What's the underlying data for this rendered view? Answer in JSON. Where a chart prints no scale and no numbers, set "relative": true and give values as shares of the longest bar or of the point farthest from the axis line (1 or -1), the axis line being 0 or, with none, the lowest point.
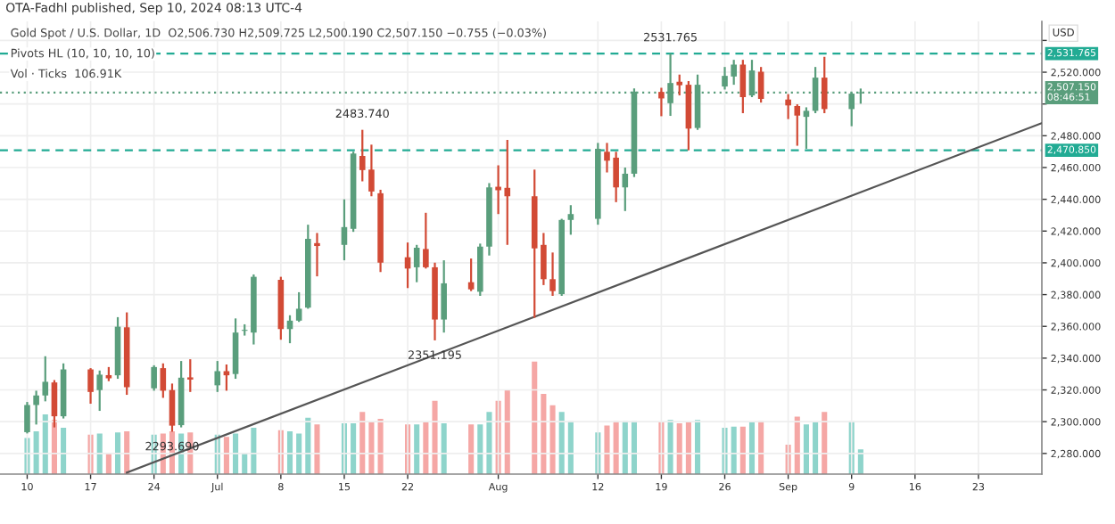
{
  "chart_data": [
    {
      "type": "candlestick",
      "title": "OTA-Fadhl published, Sep 10, 2024 08:13 UTC-4",
      "subtitle": "Gold Spot / U.S. Dollar, 1D  O2,506.730 H2,509.725 L2,500.190 C2,507.150 −0.755 (−0.03%)",
      "ylabel": "USD",
      "annotations": [
        "Pivots HL (10, 10, 10, 10)",
        "Vol · Ticks  106.91K",
        {
          "text": "2483.740",
          "x": "2024-07-17",
          "y": 2483.74
        },
        {
          "text": "2531.765",
          "x": "2024-08-20",
          "y": 2531.765
        },
        {
          "text": "2351.195",
          "x": "2024-07-25",
          "y": 2351.195
        },
        {
          "text": "2293.690",
          "x": "2024-06-26",
          "y": 2293.69
        }
      ],
      "x": [
        "2024-06-10",
        "2024-06-11",
        "2024-06-12",
        "2024-06-13",
        "2024-06-14",
        "2024-06-17",
        "2024-06-18",
        "2024-06-19",
        "2024-06-20",
        "2024-06-21",
        "2024-06-24",
        "2024-06-25",
        "2024-06-26",
        "2024-06-27",
        "2024-06-28",
        "2024-07-01",
        "2024-07-02",
        "2024-07-03",
        "2024-07-04",
        "2024-07-05",
        "2024-07-08",
        "2024-07-09",
        "2024-07-10",
        "2024-07-11",
        "2024-07-12",
        "2024-07-15",
        "2024-07-16",
        "2024-07-17",
        "2024-07-18",
        "2024-07-19",
        "2024-07-22",
        "2024-07-23",
        "2024-07-24",
        "2024-07-25",
        "2024-07-26",
        "2024-07-29",
        "2024-07-30",
        "2024-07-31",
        "2024-08-01",
        "2024-08-02",
        "2024-08-05",
        "2024-08-06",
        "2024-08-07",
        "2024-08-08",
        "2024-08-09",
        "2024-08-12",
        "2024-08-13",
        "2024-08-14",
        "2024-08-15",
        "2024-08-16",
        "2024-08-19",
        "2024-08-20",
        "2024-08-21",
        "2024-08-22",
        "2024-08-23",
        "2024-08-26",
        "2024-08-27",
        "2024-08-28",
        "2024-08-29",
        "2024-08-30",
        "2024-09-02",
        "2024-09-03",
        "2024-09-04",
        "2024-09-05",
        "2024-09-06",
        "2024-09-09",
        "2024-09-10"
      ],
      "ohlc": [
        [
          2293.4,
          2312.4,
          2292.6,
          2310.5
        ],
        [
          2310.5,
          2319.5,
          2298.2,
          2316.5
        ],
        [
          2316.5,
          2341.2,
          2312.8,
          2325.1
        ],
        [
          2324.7,
          2326.2,
          2296.4,
          2303.4
        ],
        [
          2303.4,
          2336.7,
          2302.0,
          2332.9
        ],
        [
          2332.9,
          2333.7,
          2311.3,
          2318.7
        ],
        [
          2319.9,
          2332.2,
          2306.8,
          2329.6
        ],
        [
          2329.3,
          2334.4,
          2325.5,
          2327.3
        ],
        [
          2329.2,
          2365.8,
          2327.0,
          2359.8
        ],
        [
          2359.4,
          2368.8,
          2316.9,
          2321.7
        ],
        [
          2321.0,
          2335.5,
          2319.5,
          2334.4
        ],
        [
          2333.7,
          2336.7,
          2315.0,
          2319.5
        ],
        [
          2319.9,
          2324.0,
          2293.69,
          2297.5
        ],
        [
          2297.8,
          2338.2,
          2296.4,
          2327.7
        ],
        [
          2327.9,
          2339.3,
          2318.7,
          2326.5
        ],
        [
          2322.9,
          2338.2,
          2318.7,
          2331.8
        ],
        [
          2331.8,
          2336.0,
          2319.5,
          2329.2
        ],
        [
          2330.0,
          2365.0,
          2327.0,
          2356.1
        ],
        [
          2357.2,
          2361.3,
          2354.2,
          2357.8
        ],
        [
          2356.1,
          2392.7,
          2348.6,
          2391.2
        ],
        [
          2389.3,
          2391.2,
          2351.6,
          2358.3
        ],
        [
          2358.3,
          2367.0,
          2349.4,
          2363.6
        ],
        [
          2363.6,
          2381.5,
          2362.8,
          2371.1
        ],
        [
          2371.8,
          2424.0,
          2371.1,
          2415.1
        ],
        [
          2412.4,
          2418.8,
          2391.5,
          2410.6
        ],
        [
          2411.3,
          2440.0,
          2401.6,
          2422.5
        ],
        [
          2421.4,
          2470.0,
          2419.5,
          2468.8
        ],
        [
          2467.3,
          2483.74,
          2451.3,
          2458.4
        ],
        [
          2458.7,
          2474.4,
          2441.9,
          2444.9
        ],
        [
          2443.8,
          2446.0,
          2394.2,
          2400.1
        ],
        [
          2403.5,
          2412.8,
          2384.1,
          2396.4
        ],
        [
          2397.2,
          2411.3,
          2387.8,
          2409.5
        ],
        [
          2408.7,
          2431.5,
          2396.4,
          2397.2
        ],
        [
          2397.2,
          2400.1,
          2351.195,
          2364.3
        ],
        [
          2364.3,
          2401.6,
          2356.1,
          2387.1
        ],
        [
          2387.8,
          2402.7,
          2382.2,
          2383.3
        ],
        [
          2381.8,
          2412.1,
          2379.2,
          2410.2
        ],
        [
          2410.2,
          2450.2,
          2404.6,
          2447.5
        ],
        [
          2447.9,
          2461.4,
          2430.7,
          2445.7
        ],
        [
          2447.2,
          2477.4,
          2411.3,
          2441.9
        ],
        [
          2441.9,
          2458.7,
          2365.4,
          2409.1
        ],
        [
          2411.3,
          2418.8,
          2386.0,
          2389.7
        ],
        [
          2389.7,
          2406.5,
          2379.2,
          2382.2
        ],
        [
          2380.3,
          2427.7,
          2379.2,
          2427.0
        ],
        [
          2427.0,
          2436.3,
          2417.7,
          2430.7
        ],
        [
          2427.7,
          2475.5,
          2424.0,
          2471.8
        ],
        [
          2469.9,
          2475.5,
          2456.9,
          2464.3
        ],
        [
          2466.2,
          2469.9,
          2438.2,
          2447.5
        ],
        [
          2447.5,
          2460.0,
          2432.6,
          2456.1
        ],
        [
          2456.1,
          2509.8,
          2454.0,
          2507.8
        ],
        [
          2507.6,
          2510.2,
          2492.3,
          2503.5
        ],
        [
          2500.5,
          2531.765,
          2492.5,
          2513.2
        ],
        [
          2514.0,
          2518.5,
          2505.4,
          2511.8
        ],
        [
          2512.1,
          2514.4,
          2470.85,
          2484.5
        ],
        [
          2484.9,
          2518.5,
          2483.7,
          2512.1
        ],
        [
          2511.0,
          2523.3,
          2509.1,
          2517.7
        ],
        [
          2517.3,
          2527.8,
          2512.1,
          2524.8
        ],
        [
          2524.8,
          2527.8,
          2494.2,
          2504.3
        ],
        [
          2505.4,
          2527.8,
          2504.3,
          2521.1
        ],
        [
          2520.3,
          2523.3,
          2500.9,
          2503.2
        ],
        [
          2502.8,
          2506.2,
          2490.5,
          2499.1
        ],
        [
          2498.7,
          2499.8,
          2473.7,
          2492.7
        ],
        [
          2491.9,
          2497.9,
          2471.8,
          2495.7
        ],
        [
          2495.7,
          2523.3,
          2494.2,
          2516.6
        ],
        [
          2516.6,
          2529.7,
          2494.2,
          2496.8
        ],
        [
          2496.8,
          2507.3,
          2486.0,
          2506.5
        ],
        [
          2506.73,
          2509.725,
          2500.19,
          2507.15
        ]
      ],
      "colors": [
        "#5a9e7c",
        "#5a9e7c",
        "#5a9e7c",
        "#d24a35",
        "#5a9e7c",
        "#d24a35",
        "#5a9e7c",
        "#d24a35",
        "#5a9e7c",
        "#d24a35",
        "#5a9e7c",
        "#d24a35",
        "#d24a35",
        "#5a9e7c",
        "#d24a35",
        "#5a9e7c",
        "#d24a35",
        "#5a9e7c",
        "#5a9e7c",
        "#5a9e7c",
        "#d24a35",
        "#5a9e7c",
        "#5a9e7c",
        "#5a9e7c",
        "#d24a35",
        "#5a9e7c",
        "#5a9e7c",
        "#d24a35",
        "#d24a35",
        "#d24a35",
        "#d24a35",
        "#5a9e7c",
        "#d24a35",
        "#d24a35",
        "#5a9e7c",
        "#d24a35",
        "#5a9e7c",
        "#5a9e7c",
        "#d24a35",
        "#d24a35",
        "#d24a35",
        "#d24a35",
        "#d24a35",
        "#5a9e7c",
        "#5a9e7c",
        "#5a9e7c",
        "#d24a35",
        "#d24a35",
        "#5a9e7c",
        "#5a9e7c",
        "#d24a35",
        "#5a9e7c",
        "#d24a35",
        "#d24a35",
        "#5a9e7c",
        "#5a9e7c",
        "#5a9e7c",
        "#d24a35",
        "#5a9e7c",
        "#d24a35",
        "#d24a35",
        "#d24a35",
        "#5a9e7c",
        "#5a9e7c",
        "#d24a35",
        "#5a9e7c",
        "#5a9e7c"
      ],
      "series": [
        {
          "type": "line",
          "color": "#555555",
          "x": [
            "2024-06-21",
            "2024-09-30"
          ],
          "values": [
            2268,
            2488
          ]
        }
      ],
      "ref_lines": [
        {
          "axis": "y",
          "value": 2531.765,
          "label": "2,531.765",
          "color": "#22ab94",
          "line_style": "dashed"
        },
        {
          "axis": "y",
          "value": 2470.85,
          "label": "2,470.850",
          "color": "#22ab94",
          "line_style": "dashed"
        },
        {
          "axis": "y",
          "value": 2507.15,
          "label": "2,507.150\n08:46:51",
          "color": "#5a9e7c",
          "line_style": "dotted"
        }
      ],
      "xlim": [
        "2024-06-07",
        "2024-09-30"
      ],
      "xticks": [
        {
          "value": "2024-06-10",
          "label": "10"
        },
        {
          "value": "2024-06-17",
          "label": "17"
        },
        {
          "value": "2024-06-24",
          "label": "24"
        },
        {
          "value": "2024-07-01",
          "label": "Jul"
        },
        {
          "value": "2024-07-08",
          "label": "8"
        },
        {
          "value": "2024-07-15",
          "label": "15"
        },
        {
          "value": "2024-07-22",
          "label": "22"
        },
        {
          "value": "2024-08-01",
          "label": "Aug"
        },
        {
          "value": "2024-08-12",
          "label": "12"
        },
        {
          "value": "2024-08-19",
          "label": "19"
        },
        {
          "value": "2024-08-26",
          "label": "26"
        },
        {
          "value": "2024-09-02",
          "label": "Sep"
        },
        {
          "value": "2024-09-09",
          "label": "9"
        },
        {
          "value": "2024-09-16",
          "label": "16"
        },
        {
          "value": "2024-09-23",
          "label": "23"
        }
      ],
      "ylim": [
        2267,
        2552
      ],
      "yticks": [
        {
          "value": 2280,
          "label": "2,280.000"
        },
        {
          "value": 2300,
          "label": "2,300.000"
        },
        {
          "value": 2320,
          "label": "2,320.000"
        },
        {
          "value": 2340,
          "label": "2,340.000"
        },
        {
          "value": 2360,
          "label": "2,360.000"
        },
        {
          "value": 2380,
          "label": "2,380.000"
        },
        {
          "value": 2400,
          "label": "2,400.000"
        },
        {
          "value": 2420,
          "label": "2,420.000"
        },
        {
          "value": 2440,
          "label": "2,440.000"
        },
        {
          "value": 2460,
          "label": "2,460.000"
        },
        {
          "value": 2480,
          "label": "2,480.000"
        },
        {
          "value": 2500,
          "label": null
        },
        {
          "value": 2520,
          "label": "2,520.000"
        },
        {
          "value": 2540,
          "label": null
        }
      ],
      "grid": true
    },
    {
      "type": "bar",
      "relative": true,
      "categories": [
        null,
        null,
        null,
        null,
        null,
        null,
        null,
        null,
        null,
        null,
        null,
        null,
        null,
        null,
        null,
        null,
        null,
        null,
        null,
        null,
        null,
        null,
        null,
        null,
        null,
        null,
        null,
        null,
        null,
        null,
        null,
        null,
        null,
        null,
        null,
        null,
        null,
        null,
        null,
        null,
        null,
        null,
        null,
        null,
        null,
        null,
        null,
        null,
        null,
        null,
        null,
        null,
        null,
        null,
        null,
        null,
        null,
        null,
        null,
        null,
        null,
        null,
        null,
        null,
        null,
        null,
        null
      ],
      "values": [
        0.32,
        0.38,
        0.53,
        0.48,
        0.41,
        0.35,
        0.36,
        0.18,
        0.37,
        0.38,
        0.35,
        0.36,
        0.38,
        0.36,
        0.37,
        0.35,
        0.33,
        0.36,
        0.19,
        0.41,
        0.39,
        0.38,
        0.36,
        0.5,
        0.44,
        0.45,
        0.45,
        0.55,
        0.46,
        0.49,
        0.44,
        0.44,
        0.46,
        0.65,
        0.45,
        0.44,
        0.44,
        0.55,
        0.65,
        0.75,
        1,
        0.71,
        0.61,
        0.55,
        0.47,
        0.37,
        0.43,
        0.47,
        0.47,
        0.47,
        0.46,
        0.48,
        0.45,
        0.46,
        0.48,
        0.41,
        0.42,
        0.42,
        0.46,
        0.47,
        0.26,
        0.51,
        0.44,
        0.46,
        0.55,
        0.47,
        0.22
      ],
      "colors": [
        "#8ed4cb",
        "#8ed4cb",
        "#8ed4cb",
        "#f5a7a5",
        "#8ed4cb",
        "#f5a7a5",
        "#8ed4cb",
        "#f5a7a5",
        "#8ed4cb",
        "#f5a7a5",
        "#8ed4cb",
        "#f5a7a5",
        "#f5a7a5",
        "#8ed4cb",
        "#f5a7a5",
        "#8ed4cb",
        "#f5a7a5",
        "#8ed4cb",
        "#8ed4cb",
        "#8ed4cb",
        "#f5a7a5",
        "#8ed4cb",
        "#8ed4cb",
        "#8ed4cb",
        "#f5a7a5",
        "#8ed4cb",
        "#8ed4cb",
        "#f5a7a5",
        "#f5a7a5",
        "#f5a7a5",
        "#f5a7a5",
        "#8ed4cb",
        "#f5a7a5",
        "#f5a7a5",
        "#8ed4cb",
        "#f5a7a5",
        "#8ed4cb",
        "#8ed4cb",
        "#f5a7a5",
        "#f5a7a5",
        "#f5a7a5",
        "#f5a7a5",
        "#f5a7a5",
        "#8ed4cb",
        "#8ed4cb",
        "#8ed4cb",
        "#f5a7a5",
        "#f5a7a5",
        "#8ed4cb",
        "#8ed4cb",
        "#f5a7a5",
        "#8ed4cb",
        "#f5a7a5",
        "#f5a7a5",
        "#8ed4cb",
        "#8ed4cb",
        "#8ed4cb",
        "#f5a7a5",
        "#8ed4cb",
        "#f5a7a5",
        "#f5a7a5",
        "#f5a7a5",
        "#8ed4cb",
        "#8ed4cb",
        "#f5a7a5",
        "#8ed4cb",
        "#8ed4cb"
      ]
    }
  ]
}
